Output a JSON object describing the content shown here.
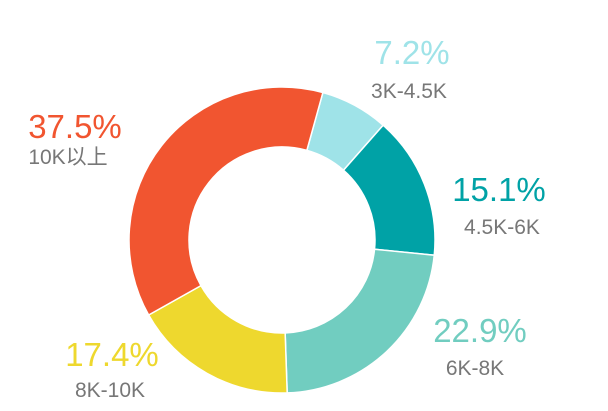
{
  "chart_data": {
    "type": "pie",
    "style": "donut",
    "slices": [
      {
        "category": "3K-4.5K",
        "value": 7.2,
        "percent_label": "7.2%",
        "color": "#9fe3e8"
      },
      {
        "category": "4.5K-6K",
        "value": 15.1,
        "percent_label": "15.1%",
        "color": "#00a2a6"
      },
      {
        "category": "6K-8K",
        "value": 22.9,
        "percent_label": "22.9%",
        "color": "#71cdc0"
      },
      {
        "category": "8K-10K",
        "value": 17.4,
        "percent_label": "17.4%",
        "color": "#eed82e"
      },
      {
        "category": "10K以上",
        "value": 37.5,
        "percent_label": "37.5%",
        "color": "#f15530"
      }
    ],
    "legend": "none",
    "labels": "outside, percent above category"
  }
}
